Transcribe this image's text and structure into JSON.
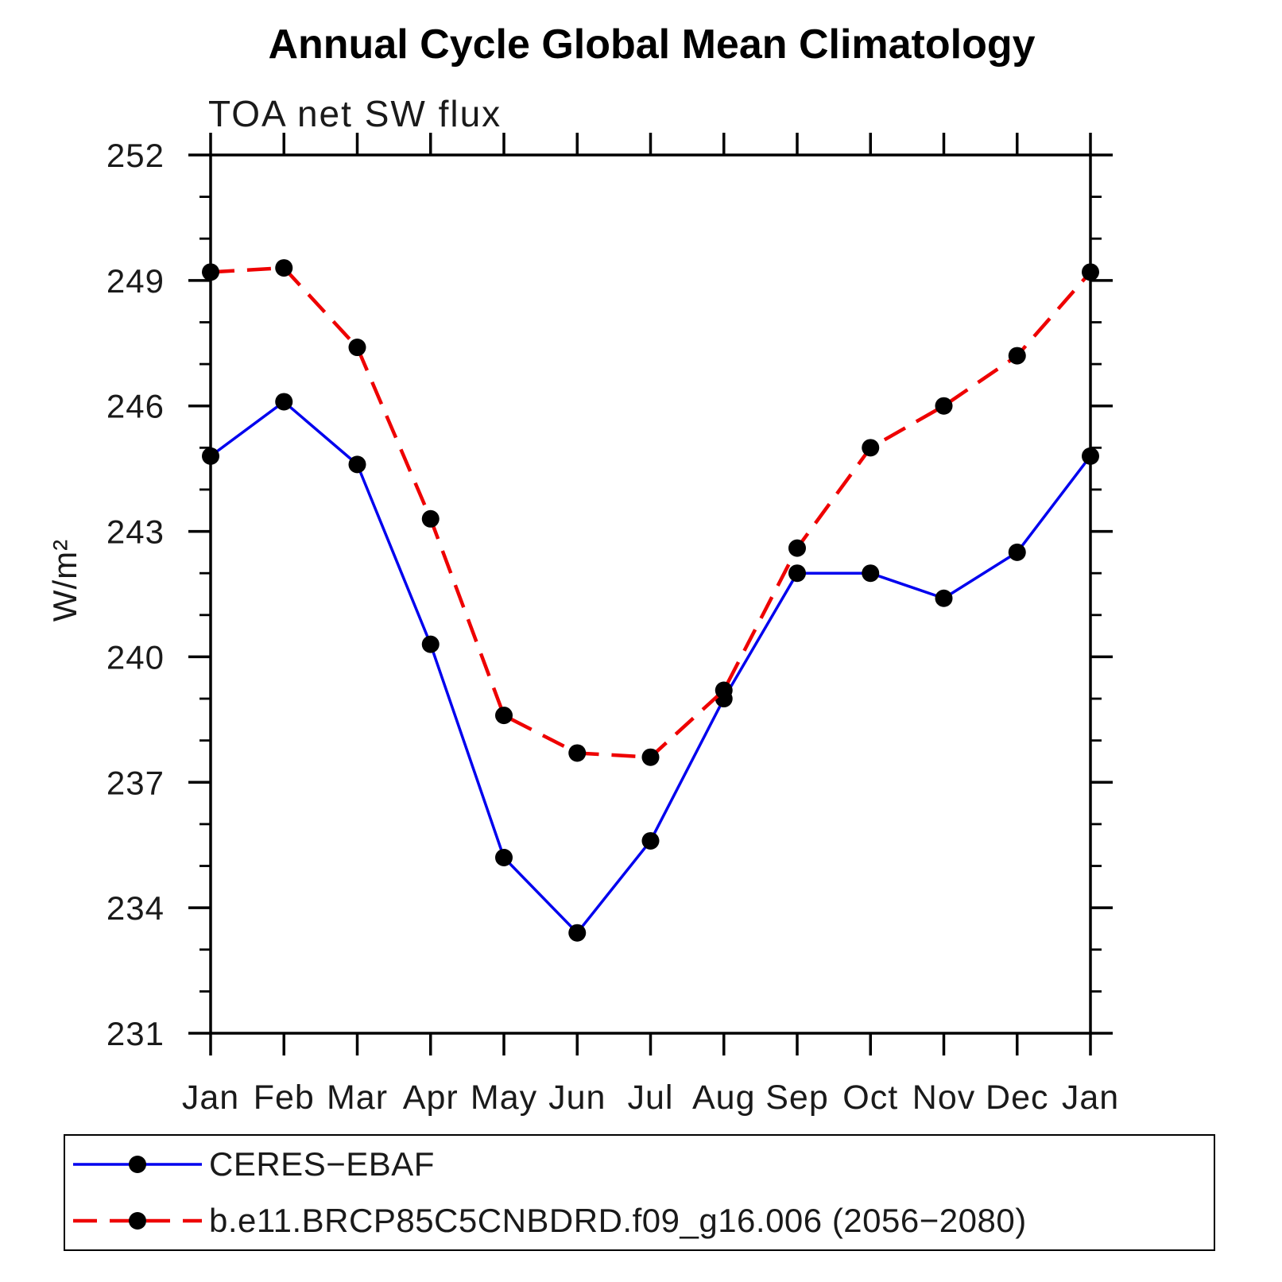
{
  "title": "Annual Cycle Global Mean Climatology",
  "subtitle": "TOA net SW flux",
  "legend": {
    "entries": [
      {
        "label": "CERES−EBAF"
      },
      {
        "label": "b.e11.BRCP85C5CNBDRD.f09_g16.006 (2056−2080)"
      }
    ]
  },
  "chart_data": {
    "type": "line",
    "title": "Annual Cycle Global Mean Climatology",
    "subtitle": "TOA net SW flux",
    "xlabel": "",
    "ylabel": "W/m²",
    "x": [
      "Jan",
      "Feb",
      "Mar",
      "Apr",
      "May",
      "Jun",
      "Jul",
      "Aug",
      "Sep",
      "Oct",
      "Nov",
      "Dec",
      "Jan"
    ],
    "series": [
      {
        "name": "CERES-EBAF",
        "color": "#0000ee",
        "line_style": "solid",
        "line_width": 3.5,
        "marker": "filled-circle",
        "marker_color": "#000000",
        "values": [
          244.8,
          246.1,
          244.6,
          240.3,
          235.2,
          233.4,
          235.6,
          239.0,
          242.0,
          242.0,
          241.4,
          242.5,
          244.8
        ]
      },
      {
        "name": "b.e11.BRCP85C5CNBDRD.f09_g16.006 (2056-2080)",
        "color": "#ee0000",
        "line_style": "dashed",
        "line_width": 4.5,
        "marker": "filled-circle",
        "marker_color": "#000000",
        "values": [
          249.2,
          249.3,
          247.4,
          243.3,
          238.6,
          237.7,
          237.6,
          239.2,
          242.6,
          245.0,
          246.0,
          247.2,
          249.2
        ]
      }
    ],
    "ylim": [
      231,
      252
    ],
    "y_major_ticks": [
      252,
      249,
      246,
      243,
      240,
      237,
      234,
      231
    ],
    "y_minor_step": 1,
    "grid": false,
    "frame": "box-with-outward-ticks",
    "legend_position": "bottom-left-box"
  }
}
